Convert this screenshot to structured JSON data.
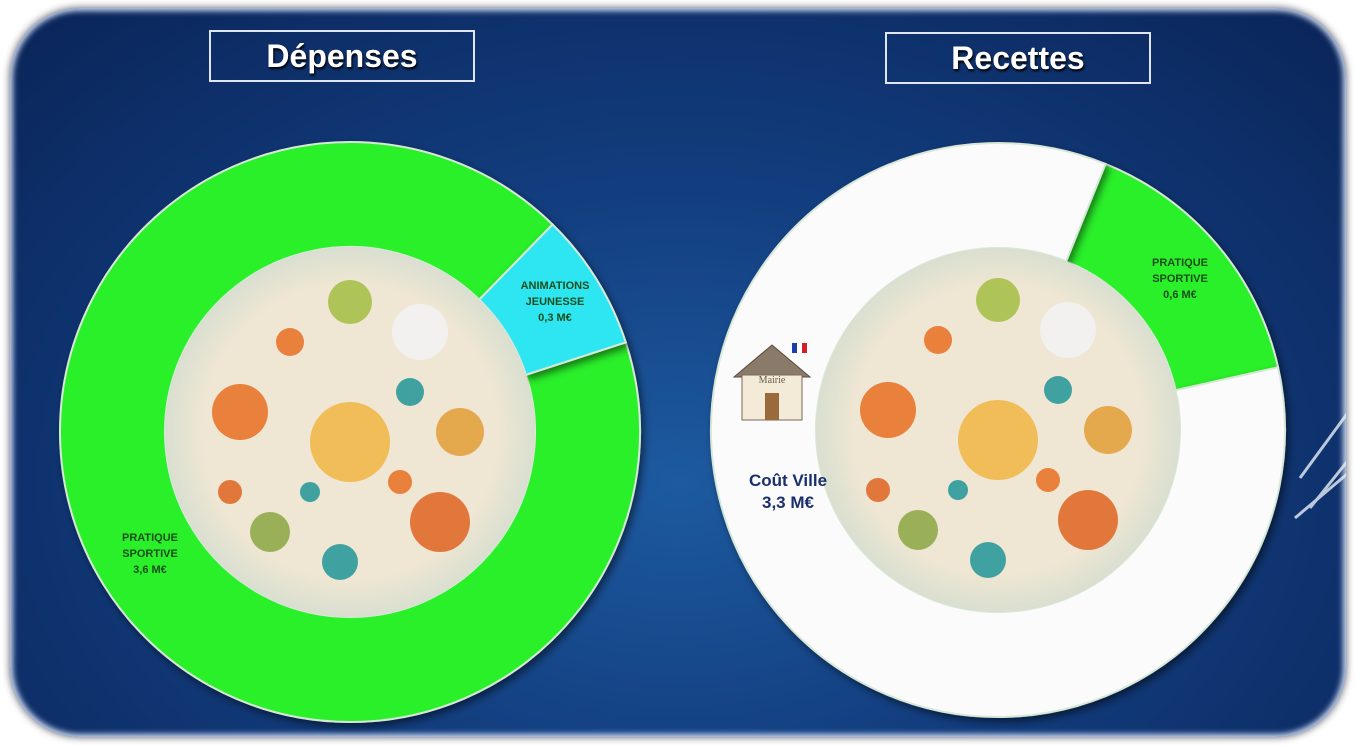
{
  "chart_data": [
    {
      "type": "pie",
      "title": "Dépenses",
      "categories": [
        "PRATIQUE SPORTIVE",
        "ANIMATIONS JEUNESSE"
      ],
      "values": [
        3.6,
        0.3
      ],
      "value_labels": [
        "3,6 M€",
        "0,3 M€"
      ],
      "colors": [
        "#2cf02c",
        "#2fe6f2"
      ]
    },
    {
      "type": "pie",
      "title": "Recettes",
      "categories": [
        "PRATIQUE SPORTIVE",
        "Coût Ville"
      ],
      "values": [
        0.6,
        3.3
      ],
      "value_labels": [
        "0,6 M€",
        "3,3 M€"
      ],
      "colors": [
        "#2cf02c",
        "#fbfbfb"
      ],
      "icon_label": "Mairie"
    }
  ]
}
